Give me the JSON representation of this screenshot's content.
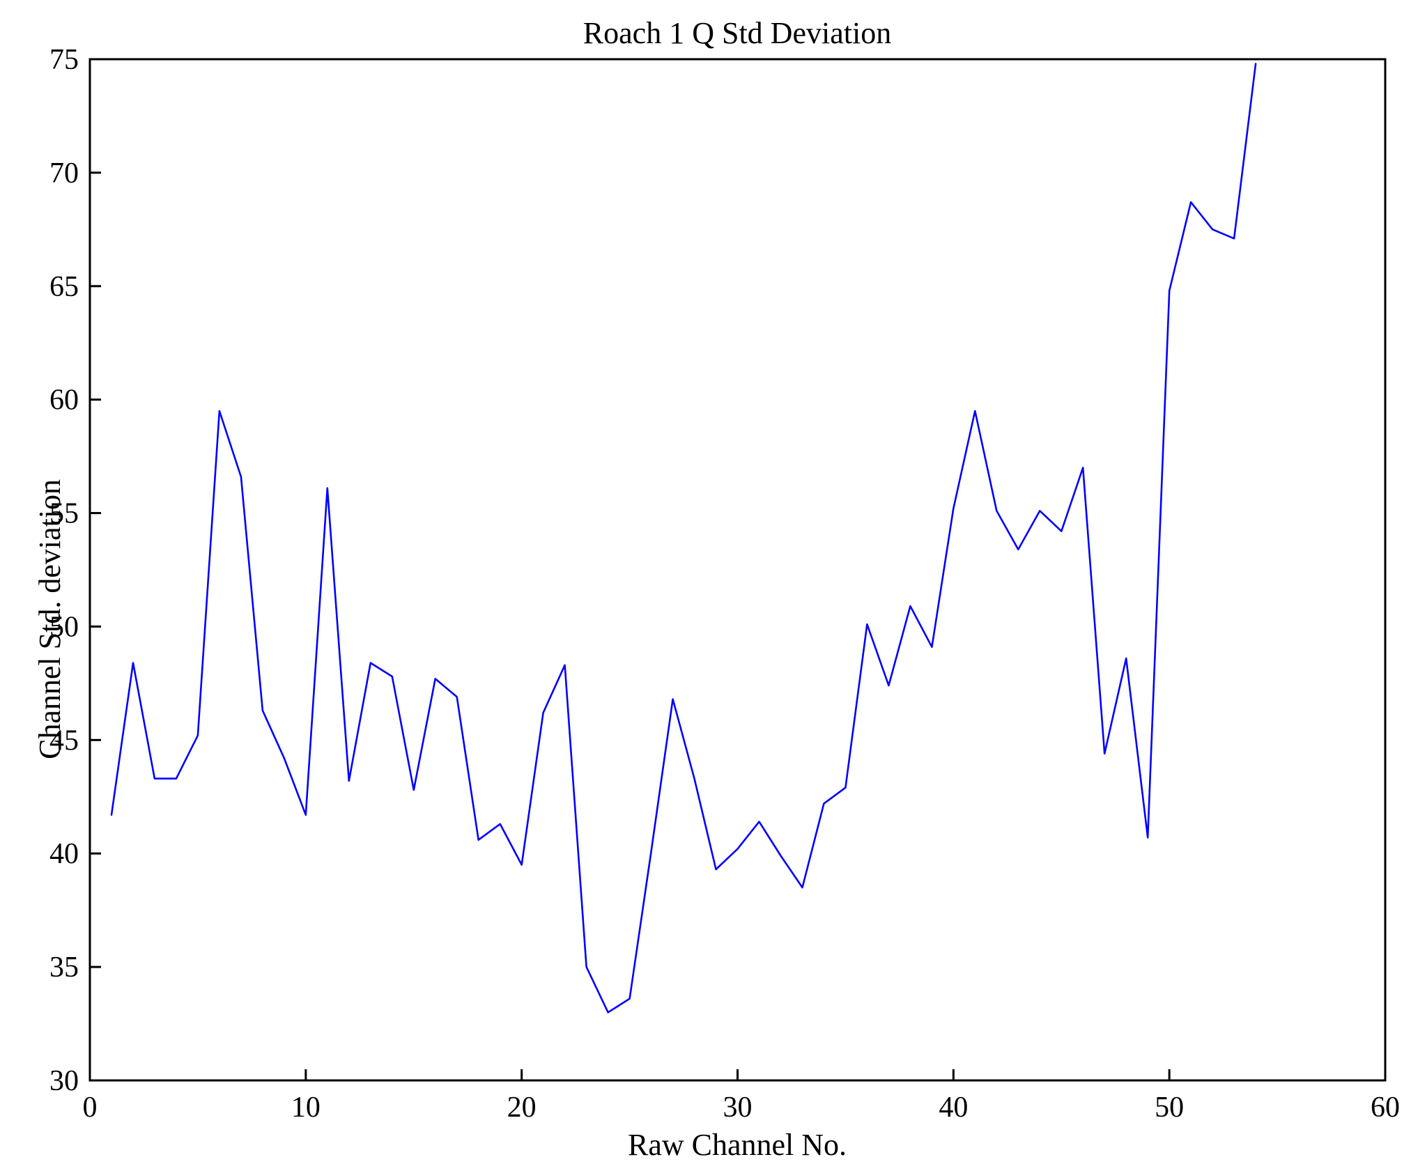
{
  "chart_data": {
    "type": "line",
    "title": "Roach 1 Q Std Deviation",
    "xlabel": "Raw Channel No.",
    "ylabel": "Channel Std. deviation",
    "xlim": [
      0,
      60
    ],
    "ylim": [
      30,
      75
    ],
    "xticks": [
      0,
      10,
      20,
      30,
      40,
      50,
      60
    ],
    "yticks": [
      30,
      35,
      40,
      45,
      50,
      55,
      60,
      65,
      70,
      75
    ],
    "grid": false,
    "legend": "none",
    "line_color": "#0000ff",
    "axis_color": "#000000",
    "background_color": "#ffffff",
    "series": [
      {
        "name": "Channel Std. deviation",
        "x": [
          1,
          2,
          3,
          4,
          5,
          6,
          7,
          8,
          9,
          10,
          11,
          12,
          13,
          14,
          15,
          16,
          17,
          18,
          19,
          20,
          21,
          22,
          23,
          24,
          25,
          26,
          27,
          28,
          29,
          30,
          31,
          32,
          33,
          34,
          35,
          36,
          37,
          38,
          39,
          40,
          41,
          42,
          43,
          44,
          45,
          46,
          47,
          48,
          49,
          50,
          51,
          52,
          53,
          54
        ],
        "y": [
          41.7,
          48.4,
          43.3,
          43.3,
          45.2,
          59.5,
          56.6,
          46.3,
          44.2,
          41.7,
          56.1,
          43.2,
          48.4,
          47.8,
          42.8,
          47.7,
          46.9,
          40.6,
          41.3,
          39.5,
          46.2,
          48.3,
          35.0,
          33.0,
          33.6,
          40.1,
          46.8,
          43.3,
          39.3,
          40.2,
          41.4,
          39.9,
          38.5,
          42.2,
          42.9,
          50.1,
          47.4,
          50.9,
          49.1,
          55.2,
          59.5,
          55.1,
          53.4,
          55.1,
          54.2,
          57.0,
          44.4,
          48.6,
          40.7,
          64.8,
          68.7,
          67.5,
          67.1,
          74.8
        ]
      }
    ]
  }
}
